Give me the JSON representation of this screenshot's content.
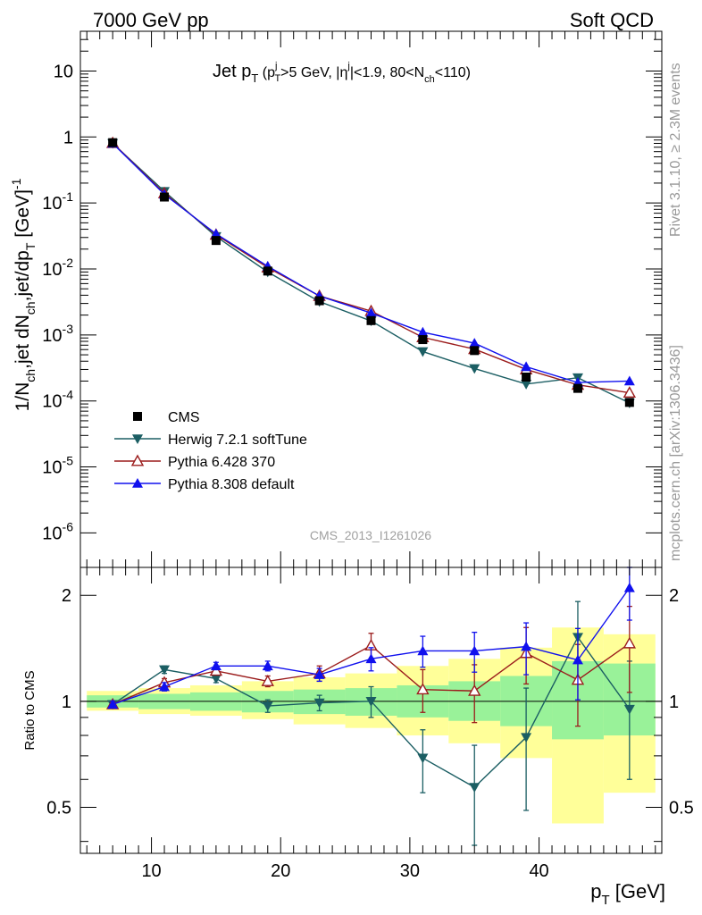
{
  "header": {
    "left": "7000 GeV pp",
    "right": "Soft QCD"
  },
  "side_labels": {
    "rivet": "Rivet 3.1.10, ≥ 2.3M events",
    "mcplots": "mcplots.cern.ch [arXiv:1306.3436]"
  },
  "chart_data": [
    {
      "type": "line",
      "title": "Jet pT (pTj>5 GeV, |ηj|<1.9, 80<Nch<110)",
      "xlabel": "pT [GeV]",
      "ylabel": "1/Nch,jet dNch,jet/dpT [GeV]-1",
      "yscale": "log",
      "xlim": [
        4.5,
        49.5
      ],
      "ylim": [
        3e-07,
        40
      ],
      "watermark": "CMS_2013_I1261026",
      "legend": [
        "CMS",
        "Herwig 7.2.1 softTune",
        "Pythia 6.428 370",
        "Pythia 8.308 default"
      ],
      "legend_position": "bottom-left",
      "x": [
        7,
        11,
        15,
        19,
        23,
        27,
        31,
        35,
        39,
        43,
        47
      ],
      "series": [
        {
          "name": "CMS",
          "color": "#000000",
          "marker": "square",
          "values": [
            0.82,
            0.123,
            0.027,
            0.0093,
            0.0033,
            0.00165,
            0.00085,
            0.00058,
            0.00023,
            0.000155,
            9.5e-05
          ]
        },
        {
          "name": "Herwig 7.2.1 softTune",
          "color": "#1b5e63",
          "marker": "triangle-down",
          "values": [
            0.8,
            0.15,
            0.031,
            0.009,
            0.0032,
            0.00163,
            0.00056,
            0.00031,
            0.00018,
            0.000225,
            9.3e-05
          ]
        },
        {
          "name": "Pythia 6.428 370",
          "color": "#9b1c1c",
          "marker": "triangle-up-open",
          "values": [
            0.81,
            0.14,
            0.033,
            0.0105,
            0.0039,
            0.0023,
            0.00092,
            0.00061,
            0.0003,
            0.000175,
            0.000133
          ]
        },
        {
          "name": "Pythia 8.308 default",
          "color": "#1010ee",
          "marker": "triangle-up",
          "values": [
            0.8,
            0.135,
            0.034,
            0.011,
            0.0039,
            0.00215,
            0.0011,
            0.00075,
            0.00033,
            0.00019,
            0.0002
          ]
        }
      ]
    },
    {
      "type": "line",
      "ylabel": "Ratio to CMS",
      "xlabel": "pT [GeV]",
      "xlim": [
        4.5,
        49.5
      ],
      "ylim": [
        0.37,
        2.4
      ],
      "x_ticks": [
        10,
        20,
        30,
        40
      ],
      "y_ticks": [
        0.5,
        1,
        2
      ],
      "x": [
        7,
        11,
        15,
        19,
        23,
        27,
        31,
        35,
        39,
        43,
        47
      ],
      "bands": {
        "edges": [
          5,
          9,
          13,
          17,
          21,
          25,
          29,
          33,
          37,
          41,
          45,
          49
        ],
        "inner_color": "#99f299",
        "outer_color": "#ffff99",
        "inner_lo": [
          0.96,
          0.95,
          0.94,
          0.93,
          0.92,
          0.91,
          0.9,
          0.88,
          0.85,
          0.78,
          0.8
        ],
        "inner_hi": [
          1.04,
          1.05,
          1.06,
          1.07,
          1.08,
          1.09,
          1.11,
          1.14,
          1.18,
          1.3,
          1.28
        ],
        "outer_lo": [
          0.94,
          0.92,
          0.91,
          0.89,
          0.86,
          0.84,
          0.8,
          0.76,
          0.69,
          0.45,
          0.55
        ],
        "outer_hi": [
          1.07,
          1.09,
          1.11,
          1.14,
          1.17,
          1.2,
          1.26,
          1.32,
          1.42,
          1.62,
          1.55
        ]
      },
      "series": [
        {
          "name": "Herwig 7.2.1 softTune",
          "color": "#1b5e63",
          "marker": "triangle-down",
          "values": [
            0.98,
            1.23,
            1.16,
            0.97,
            0.99,
            1.0,
            0.69,
            0.57,
            0.79,
            1.52,
            0.95
          ],
          "err": [
            0.02,
            0.03,
            0.03,
            0.04,
            0.05,
            0.1,
            0.14,
            0.18,
            0.3,
            0.4,
            0.35
          ]
        },
        {
          "name": "Pythia 6.428 370",
          "color": "#9b1c1c",
          "marker": "triangle-up-open",
          "values": [
            0.98,
            1.13,
            1.22,
            1.14,
            1.2,
            1.44,
            1.08,
            1.07,
            1.37,
            1.15,
            1.46
          ],
          "err": [
            0.02,
            0.03,
            0.03,
            0.04,
            0.06,
            0.12,
            0.15,
            0.2,
            0.25,
            0.3,
            0.4
          ]
        },
        {
          "name": "Pythia 8.308 default",
          "color": "#1010ee",
          "marker": "triangle-up",
          "values": [
            0.98,
            1.1,
            1.26,
            1.26,
            1.19,
            1.32,
            1.39,
            1.39,
            1.43,
            1.31,
            2.1
          ],
          "err": [
            0.02,
            0.03,
            0.03,
            0.04,
            0.05,
            0.1,
            0.14,
            0.18,
            0.24,
            0.3,
            0.4
          ]
        }
      ]
    }
  ]
}
